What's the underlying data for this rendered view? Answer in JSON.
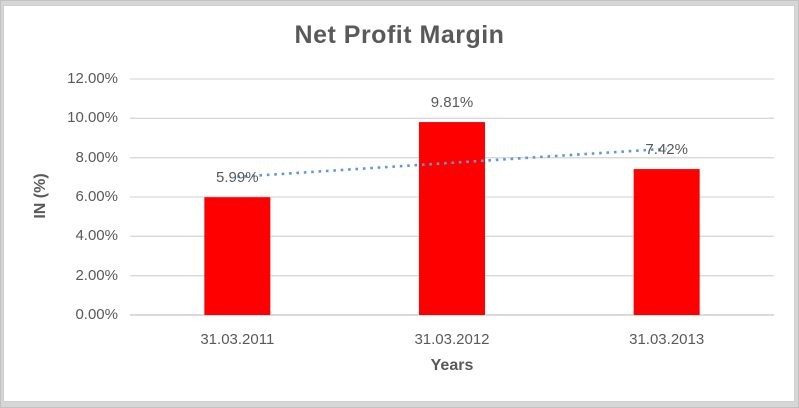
{
  "window": {
    "background_color": "#d6d6d6",
    "chart_area_color": "#ffffff"
  },
  "chart_data": {
    "type": "bar",
    "title": "Net Profit Margin",
    "xlabel": "Years",
    "ylabel": "IN (%)",
    "categories": [
      "31.03.2011",
      "31.03.2012",
      "31.03.2013"
    ],
    "values": [
      5.99,
      9.81,
      7.42
    ],
    "data_labels": [
      "5.99%",
      "9.81%",
      "7.42%"
    ],
    "ylim": [
      0,
      12
    ],
    "ytick_values": [
      0,
      2,
      4,
      6,
      8,
      10,
      12
    ],
    "ytick_labels": [
      "0.00%",
      "2.00%",
      "4.00%",
      "6.00%",
      "8.00%",
      "10.00%",
      "12.00%"
    ],
    "grid": true,
    "legend": false,
    "bar_color": "#FF0000",
    "trendline": {
      "type": "linear",
      "style": "dotted",
      "color": "#5B9BD5"
    },
    "text_color": "#595959",
    "title_color": "#595959",
    "gridline_color": "#D9D9D9",
    "axisline_color": "#C3C3C3"
  }
}
